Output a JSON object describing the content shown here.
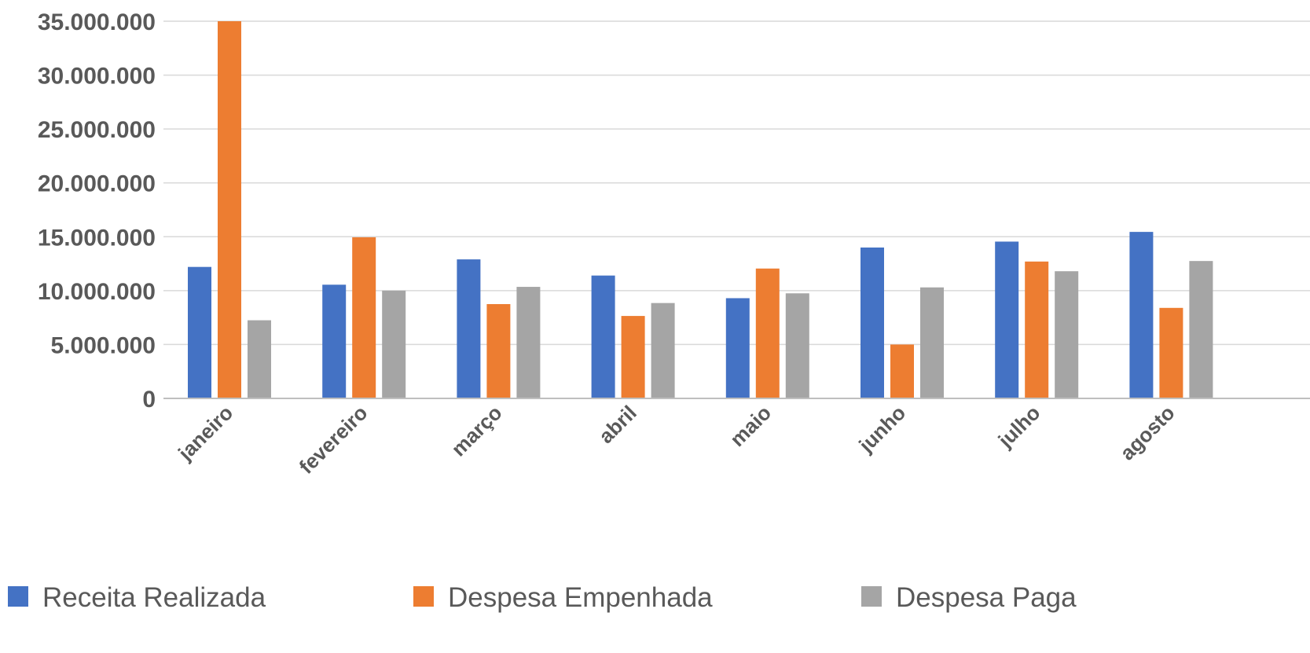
{
  "chart_data": {
    "type": "bar",
    "categories": [
      "janeiro",
      "fevereiro",
      "março",
      "abril",
      "maio",
      "junho",
      "julho",
      "agosto"
    ],
    "series": [
      {
        "name": "Receita Realizada",
        "color": "#4472C4",
        "values": [
          12200000,
          10550000,
          12900000,
          11400000,
          9300000,
          14000000,
          14550000,
          15450000
        ]
      },
      {
        "name": "Despesa Empenhada",
        "color": "#ED7D31",
        "values": [
          35000000,
          14950000,
          8750000,
          7650000,
          12050000,
          5000000,
          12700000,
          8400000
        ]
      },
      {
        "name": "Despesa Paga",
        "color": "#A5A5A5",
        "values": [
          7250000,
          10000000,
          10350000,
          8850000,
          9750000,
          10300000,
          11800000,
          12750000
        ]
      }
    ],
    "ylim": [
      0,
      35000000
    ],
    "yticks": [
      0,
      5000000,
      10000000,
      15000000,
      20000000,
      25000000,
      30000000,
      35000000
    ],
    "ytick_labels": [
      "0",
      "5.000.000",
      "10.000.000",
      "15.000.000",
      "20.000.000",
      "25.000.000",
      "30.000.000",
      "35.000.000"
    ],
    "grid": true,
    "legend_position": "bottom",
    "title": "",
    "xlabel": "",
    "ylabel": ""
  },
  "colors": {
    "gridline": "#D9D9D9",
    "axis": "#BFBFBF",
    "text": "#595959"
  }
}
